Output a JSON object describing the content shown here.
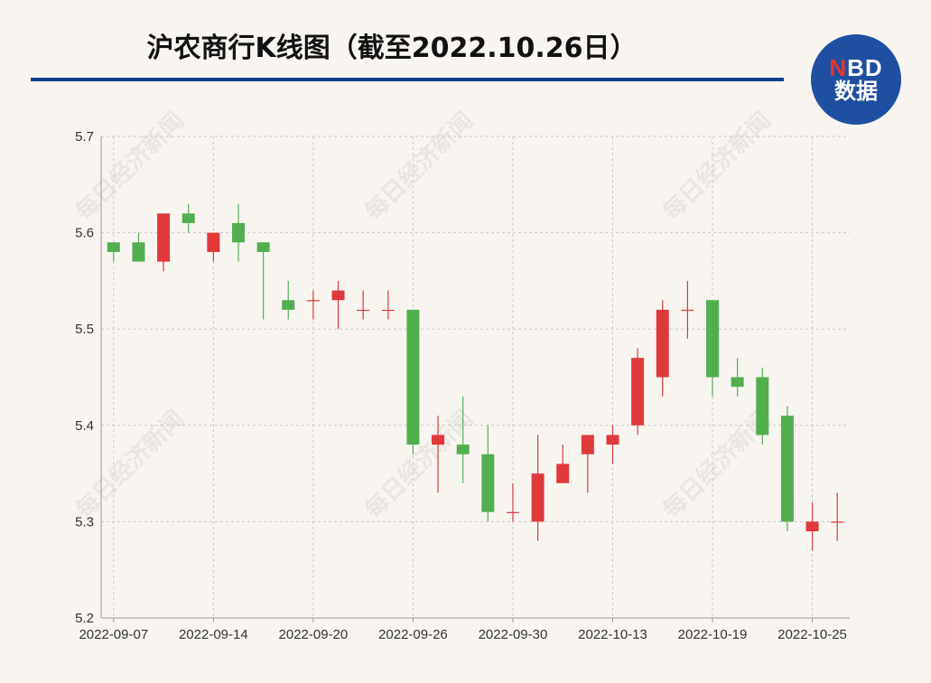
{
  "header": {
    "title": "沪农商行K线图（截至2022.10.26日）",
    "logo_line1_n": "N",
    "logo_line1_rest": "BD",
    "logo_line2": "数据"
  },
  "watermark": "每日经济新闻",
  "colors": {
    "up": "#e0393a",
    "down": "#52af4f",
    "title_rule": "#123f8a",
    "logo_bg": "#1f4fa0",
    "grid": "#c8c8c8"
  },
  "chart_data": {
    "type": "candlestick",
    "title": "沪农商行K线图（截至2022.10.26日）",
    "ylim": [
      5.2,
      5.7
    ],
    "yticks": [
      5.2,
      5.3,
      5.4,
      5.5,
      5.6,
      5.7
    ],
    "xtick_labels": [
      "2022-09-07",
      "2022-09-14",
      "2022-09-20",
      "2022-09-26",
      "2022-09-30",
      "2022-10-13",
      "2022-10-19",
      "2022-10-25"
    ],
    "xtick_indices": [
      0,
      4,
      8,
      12,
      16,
      20,
      24,
      28
    ],
    "grid": true,
    "candles": [
      {
        "open": 5.59,
        "close": 5.58,
        "high": 5.59,
        "low": 5.57
      },
      {
        "open": 5.59,
        "close": 5.57,
        "high": 5.6,
        "low": 5.57
      },
      {
        "open": 5.57,
        "close": 5.62,
        "high": 5.62,
        "low": 5.56
      },
      {
        "open": 5.62,
        "close": 5.61,
        "high": 5.63,
        "low": 5.6
      },
      {
        "open": 5.58,
        "close": 5.6,
        "high": 5.6,
        "low": 5.57
      },
      {
        "open": 5.61,
        "close": 5.59,
        "high": 5.63,
        "low": 5.57
      },
      {
        "open": 5.59,
        "close": 5.58,
        "high": 5.59,
        "low": 5.51
      },
      {
        "open": 5.53,
        "close": 5.52,
        "high": 5.55,
        "low": 5.51
      },
      {
        "open": 5.53,
        "close": 5.53,
        "high": 5.54,
        "low": 5.51
      },
      {
        "open": 5.53,
        "close": 5.54,
        "high": 5.55,
        "low": 5.5
      },
      {
        "open": 5.52,
        "close": 5.52,
        "high": 5.54,
        "low": 5.51
      },
      {
        "open": 5.52,
        "close": 5.52,
        "high": 5.54,
        "low": 5.51
      },
      {
        "open": 5.52,
        "close": 5.38,
        "high": 5.52,
        "low": 5.37
      },
      {
        "open": 5.38,
        "close": 5.39,
        "high": 5.41,
        "low": 5.33
      },
      {
        "open": 5.38,
        "close": 5.37,
        "high": 5.43,
        "low": 5.34
      },
      {
        "open": 5.37,
        "close": 5.31,
        "high": 5.4,
        "low": 5.3
      },
      {
        "open": 5.31,
        "close": 5.31,
        "high": 5.34,
        "low": 5.3
      },
      {
        "open": 5.3,
        "close": 5.35,
        "high": 5.39,
        "low": 5.28
      },
      {
        "open": 5.34,
        "close": 5.36,
        "high": 5.38,
        "low": 5.34
      },
      {
        "open": 5.37,
        "close": 5.39,
        "high": 5.39,
        "low": 5.33
      },
      {
        "open": 5.38,
        "close": 5.39,
        "high": 5.4,
        "low": 5.36
      },
      {
        "open": 5.4,
        "close": 5.47,
        "high": 5.48,
        "low": 5.39
      },
      {
        "open": 5.45,
        "close": 5.52,
        "high": 5.53,
        "low": 5.43
      },
      {
        "open": 5.52,
        "close": 5.52,
        "high": 5.55,
        "low": 5.49
      },
      {
        "open": 5.53,
        "close": 5.45,
        "high": 5.53,
        "low": 5.43
      },
      {
        "open": 5.45,
        "close": 5.44,
        "high": 5.47,
        "low": 5.43
      },
      {
        "open": 5.45,
        "close": 5.39,
        "high": 5.46,
        "low": 5.38
      },
      {
        "open": 5.41,
        "close": 5.3,
        "high": 5.42,
        "low": 5.29
      },
      {
        "open": 5.29,
        "close": 5.3,
        "high": 5.32,
        "low": 5.27
      },
      {
        "open": 5.3,
        "close": 5.3,
        "high": 5.33,
        "low": 5.28
      }
    ]
  }
}
